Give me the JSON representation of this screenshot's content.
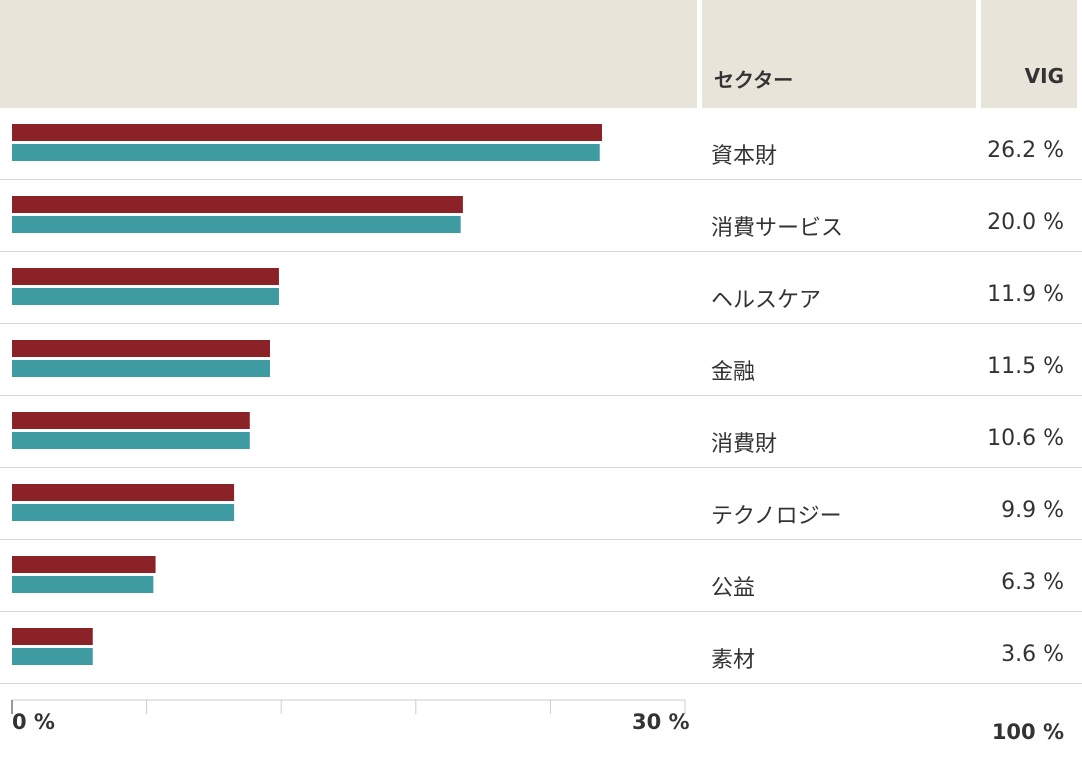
{
  "header": {
    "sector_label": "セクター",
    "vig_label": "VIG"
  },
  "chart_data": {
    "type": "bar",
    "orientation": "horizontal",
    "categories": [
      "資本財",
      "消費サービス",
      "ヘルスケア",
      "金融",
      "消費財",
      "テクノロジー",
      "公益",
      "素材"
    ],
    "series": [
      {
        "values": [
          26.3,
          20.1,
          11.9,
          11.5,
          10.6,
          9.9,
          6.4,
          3.6
        ]
      },
      {
        "values": [
          26.2,
          20.0,
          11.9,
          11.5,
          10.6,
          9.9,
          6.3,
          3.6
        ]
      }
    ],
    "value_labels": [
      "26.2 %",
      "20.0 %",
      "11.9 %",
      "11.5 %",
      "10.6 %",
      "9.9 %",
      "6.3 %",
      "3.6 %"
    ],
    "xlim": [
      0,
      30
    ],
    "tick_labels": {
      "min": "0 %",
      "max": "30 %"
    },
    "total_label": "100 %",
    "colors": {
      "series1": "#8b2227",
      "series2": "#3f9ba2",
      "header_bg": "#e8e4da"
    }
  }
}
